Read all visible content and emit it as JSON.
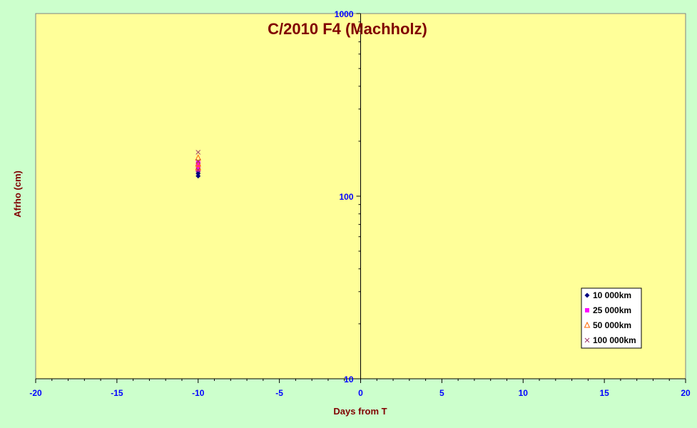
{
  "chart_data": {
    "type": "scatter",
    "title": "C/2010 F4 (Machholz)",
    "xlabel": "Days from T",
    "ylabel": "Afrho (cm)",
    "xlim": [
      -20,
      20
    ],
    "ylim": [
      10,
      1000
    ],
    "yscale": "log",
    "x_ticks": [
      "-20",
      "-15",
      "-10",
      "-5",
      "0",
      "5",
      "10",
      "15",
      "20"
    ],
    "y_ticks": [
      "10",
      "100",
      "1000"
    ],
    "grid": false,
    "legend_position": "bottom-right",
    "series": [
      {
        "name": "10 000km",
        "marker": "diamond",
        "color": "#000080",
        "points": [
          {
            "x": -10,
            "y": 129
          },
          {
            "x": -10,
            "y": 133
          },
          {
            "x": -10,
            "y": 137
          }
        ]
      },
      {
        "name": "25 000km",
        "marker": "square",
        "color": "#ff00ff",
        "points": [
          {
            "x": -10,
            "y": 140
          },
          {
            "x": -10,
            "y": 147
          },
          {
            "x": -10,
            "y": 152
          }
        ]
      },
      {
        "name": "50 000km",
        "marker": "triangle",
        "color": "#ff6600",
        "points": [
          {
            "x": -10,
            "y": 143
          },
          {
            "x": -10,
            "y": 150
          },
          {
            "x": -10,
            "y": 162
          }
        ]
      },
      {
        "name": "100 000km",
        "marker": "x",
        "color": "#993366",
        "points": [
          {
            "x": -10,
            "y": 139
          },
          {
            "x": -10,
            "y": 155
          },
          {
            "x": -10,
            "y": 174
          }
        ]
      }
    ]
  },
  "colors": {
    "background": "#ccffcc",
    "plot_area": "#ffff99",
    "title": "#800000",
    "axis_title": "#800000",
    "tick_label": "#0000ff"
  }
}
